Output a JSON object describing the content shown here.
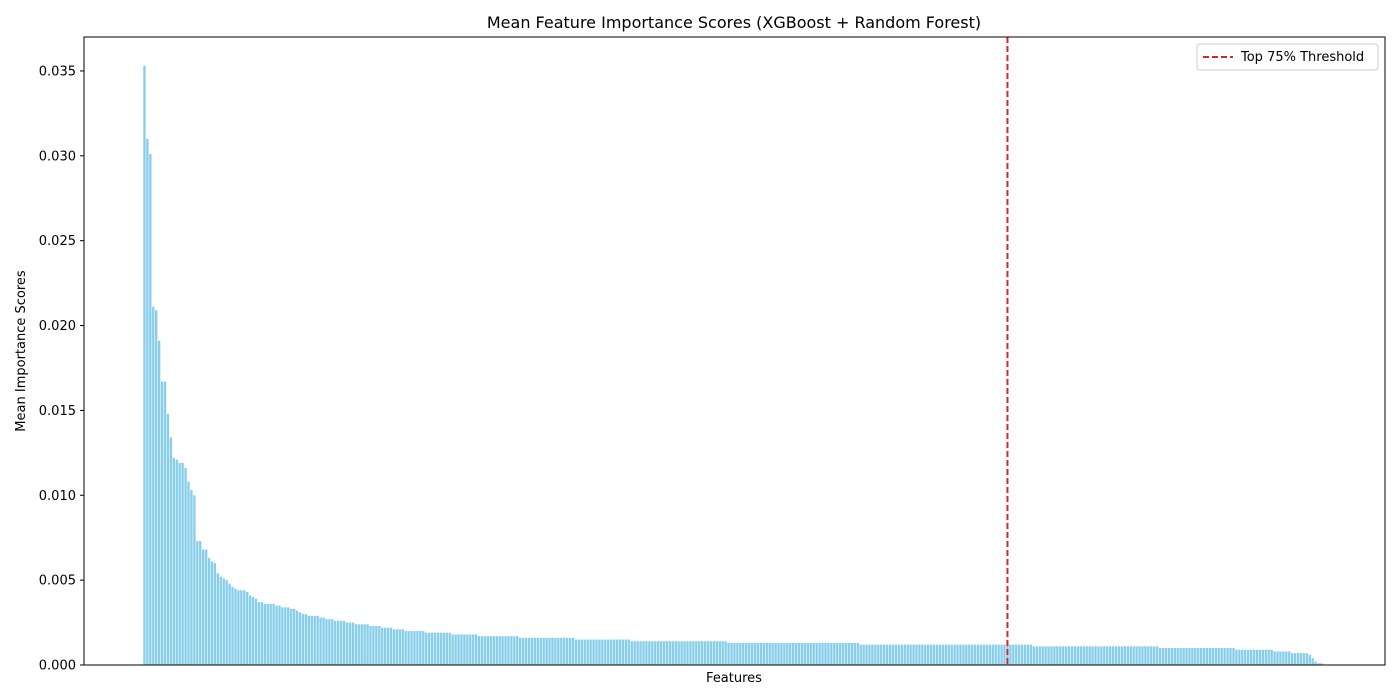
{
  "chart_data": {
    "type": "bar",
    "title": "Mean Feature Importance Scores (XGBoost + Random Forest)",
    "xlabel": "Features",
    "ylabel": "Mean Importance Scores",
    "ylim": [
      0,
      0.037
    ],
    "yticks": [
      "0.000",
      "0.005",
      "0.010",
      "0.015",
      "0.020",
      "0.025",
      "0.030",
      "0.035"
    ],
    "ytick_values": [
      0,
      0.005,
      0.01,
      0.015,
      0.02,
      0.025,
      0.03,
      0.035
    ],
    "bar_color": "#87ceeb",
    "feature_count": 393,
    "series": [
      {
        "values": [
          0.0353,
          0.031,
          0.0301,
          0.0211,
          0.0209,
          0.0191,
          0.0167,
          0.0167,
          0.0148,
          0.0134,
          0.0122,
          0.0121,
          0.0119,
          0.0119,
          0.0116,
          0.0108,
          0.0103,
          0.01,
          0.0073,
          0.0073,
          0.0068,
          0.0068,
          0.0063,
          0.0061,
          0.006,
          0.0054,
          0.0052,
          0.0051,
          0.005,
          0.0048,
          0.0046,
          0.0045,
          0.0044,
          0.0044,
          0.0044,
          0.0043,
          0.0041,
          0.004,
          0.0039,
          0.0037,
          0.0037,
          0.0036,
          0.0036,
          0.0036,
          0.0036,
          0.0035,
          0.0035,
          0.0034,
          0.0034,
          0.0034,
          0.0033,
          0.0033,
          0.0032,
          0.0031,
          0.003,
          0.003,
          0.0029,
          0.0029,
          0.0029,
          0.0029,
          0.0028,
          0.0028,
          0.0027,
          0.0027,
          0.0027,
          0.0026,
          0.0026,
          0.0026,
          0.0026,
          0.0025,
          0.0025,
          0.0025,
          0.0024,
          0.0024,
          0.0024,
          0.0024,
          0.0024,
          0.0023,
          0.0023,
          0.0023,
          0.0023,
          0.0022,
          0.0022,
          0.0022,
          0.0022,
          0.0021,
          0.0021,
          0.0021,
          0.0021,
          0.002,
          0.002,
          0.002,
          0.002,
          0.002,
          0.002,
          0.002,
          0.0019,
          0.0019,
          0.0019,
          0.0019,
          0.0019,
          0.0019,
          0.0019,
          0.0019,
          0.0019,
          0.0018,
          0.0018,
          0.0018,
          0.0018,
          0.0018,
          0.0018,
          0.0018,
          0.0018,
          0.0018,
          0.0017,
          0.0017,
          0.0017,
          0.0017,
          0.0017,
          0.0017,
          0.0017,
          0.0017,
          0.0017,
          0.0017,
          0.0017,
          0.0017,
          0.0017,
          0.0017,
          0.0016,
          0.0016,
          0.0016,
          0.0016,
          0.0016,
          0.0016,
          0.0016,
          0.0016,
          0.0016,
          0.0016,
          0.0016,
          0.0016,
          0.0016,
          0.0016,
          0.0016,
          0.0016,
          0.0016,
          0.0016,
          0.0016,
          0.0015,
          0.0015,
          0.0015,
          0.0015,
          0.0015,
          0.0015,
          0.0015,
          0.0015,
          0.0015,
          0.0015,
          0.0015,
          0.0015,
          0.0015,
          0.0015,
          0.0015,
          0.0015,
          0.0015,
          0.0015,
          0.0015,
          0.0014,
          0.0014,
          0.0014,
          0.0014,
          0.0014,
          0.0014,
          0.0014,
          0.0014,
          0.0014,
          0.0014,
          0.0014,
          0.0014,
          0.0014,
          0.0014,
          0.0014,
          0.0014,
          0.0014,
          0.0014,
          0.0014,
          0.0014,
          0.0014,
          0.0014,
          0.0014,
          0.0014,
          0.0014,
          0.0014,
          0.0014,
          0.0014,
          0.0014,
          0.0014,
          0.0014,
          0.0014,
          0.0014,
          0.0013,
          0.0013,
          0.0013,
          0.0013,
          0.0013,
          0.0013,
          0.0013,
          0.0013,
          0.0013,
          0.0013,
          0.0013,
          0.0013,
          0.0013,
          0.0013,
          0.0013,
          0.0013,
          0.0013,
          0.0013,
          0.0013,
          0.0013,
          0.0013,
          0.0013,
          0.0013,
          0.0013,
          0.0013,
          0.0013,
          0.0013,
          0.0013,
          0.0013,
          0.0013,
          0.0013,
          0.0013,
          0.0013,
          0.0013,
          0.0013,
          0.0013,
          0.0013,
          0.0013,
          0.0013,
          0.0013,
          0.0013,
          0.0013,
          0.0013,
          0.0013,
          0.0013,
          0.0012,
          0.0012,
          0.0012,
          0.0012,
          0.0012,
          0.0012,
          0.0012,
          0.0012,
          0.0012,
          0.0012,
          0.0012,
          0.0012,
          0.0012,
          0.0012,
          0.0012,
          0.0012,
          0.0012,
          0.0012,
          0.0012,
          0.0012,
          0.0012,
          0.0012,
          0.0012,
          0.0012,
          0.0012,
          0.0012,
          0.0012,
          0.0012,
          0.0012,
          0.0012,
          0.0012,
          0.0012,
          0.0012,
          0.0012,
          0.0012,
          0.0012,
          0.0012,
          0.0012,
          0.0012,
          0.0012,
          0.0012,
          0.0012,
          0.0012,
          0.0012,
          0.0012,
          0.0012,
          0.0012,
          0.0012,
          0.0012,
          0.0012,
          0.0012,
          0.0012,
          0.0012,
          0.0012,
          0.0012,
          0.0012,
          0.0012,
          0.0012,
          0.0012,
          0.0011,
          0.0011,
          0.0011,
          0.0011,
          0.0011,
          0.0011,
          0.0011,
          0.0011,
          0.0011,
          0.0011,
          0.0011,
          0.0011,
          0.0011,
          0.0011,
          0.0011,
          0.0011,
          0.0011,
          0.0011,
          0.0011,
          0.0011,
          0.0011,
          0.0011,
          0.0011,
          0.0011,
          0.0011,
          0.0011,
          0.0011,
          0.0011,
          0.0011,
          0.0011,
          0.0011,
          0.0011,
          0.0011,
          0.0011,
          0.0011,
          0.0011,
          0.0011,
          0.0011,
          0.0011,
          0.0011,
          0.0011,
          0.0011,
          0.0011,
          0.001,
          0.001,
          0.001,
          0.001,
          0.001,
          0.001,
          0.001,
          0.001,
          0.001,
          0.001,
          0.001,
          0.001,
          0.001,
          0.001,
          0.001,
          0.001,
          0.001,
          0.001,
          0.001,
          0.001,
          0.001,
          0.001,
          0.001,
          0.001,
          0.001,
          0.001,
          0.0009,
          0.0009,
          0.0009,
          0.0009,
          0.0009,
          0.0009,
          0.0009,
          0.0009,
          0.0009,
          0.0009,
          0.0009,
          0.0009,
          0.0009,
          0.0008,
          0.0008,
          0.0008,
          0.0008,
          0.0008,
          0.0008,
          0.0007,
          0.0007,
          0.0007,
          0.0007,
          0.0007,
          0.0007,
          0.0006,
          0.0004,
          0.0002,
          0.0001,
          0.0001
        ]
      }
    ],
    "threshold": {
      "label": "Top 75% Threshold",
      "feature_position": 294,
      "color": "#d62728",
      "style": "dashed"
    },
    "legend": {
      "placement": "top-right",
      "entries": [
        "Top 75% Threshold"
      ]
    },
    "grid": false
  }
}
